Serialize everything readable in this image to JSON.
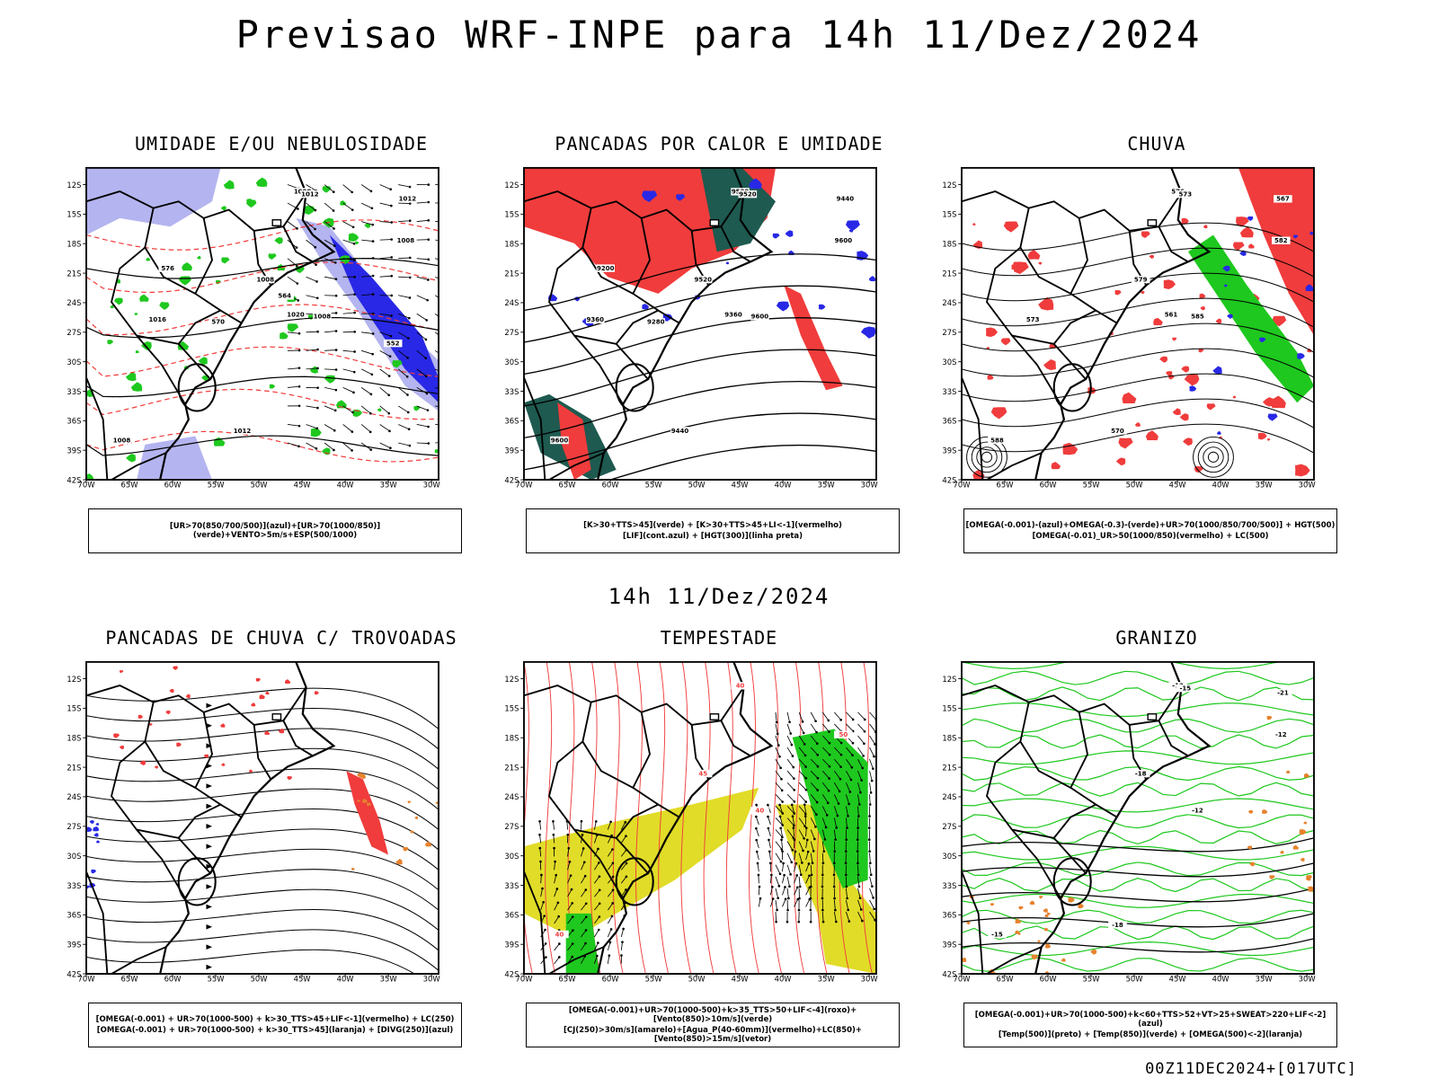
{
  "title": "Previsao WRF-INPE  para 14h 11/Dez/2024",
  "mid_label": "14h 11/Dez/2024",
  "footer": "00Z11DEC2024+[017UTC]",
  "lat_ticks": [
    "12S",
    "15S",
    "18S",
    "21S",
    "24S",
    "27S",
    "30S",
    "33S",
    "36S",
    "39S",
    "42S"
  ],
  "lon_ticks": [
    "70W",
    "65W",
    "60W",
    "55W",
    "50W",
    "45W",
    "40W",
    "35W",
    "30W"
  ],
  "panels": [
    {
      "title": "UMIDADE E/OU NEBULOSIDADE",
      "legend": [
        "[UR>70(850/700/500)](azul)+[UR>70(1000/850)](verde)+VENTO>5m/s+ESP(500/1000)"
      ],
      "fields": [
        "lilac-humidity",
        "blue-humidity",
        "green-humidity",
        "red-dashed-thickness",
        "black-isobars",
        "wind-arrows"
      ],
      "labels": [
        "1008",
        "1008",
        "1008",
        "1008",
        "1008",
        "1012",
        "1012",
        "1012",
        "1016",
        "1020",
        "570",
        "576",
        "552",
        "564"
      ]
    },
    {
      "title": "PANCADAS POR CALOR E UMIDADE",
      "legend": [
        "[K>30+TTS>45](verde) + [K>30+TTS>45+LI<-1](vermelho)",
        "[LIF](cont.azul) + [HGT(300)](linha preta)"
      ],
      "fields": [
        "red-shading",
        "dark-green-shading",
        "blue-contours",
        "black-height-lines"
      ],
      "labels": [
        "9600",
        "9600",
        "9600",
        "9520",
        "9520",
        "9520",
        "9440",
        "9440",
        "9360",
        "9360",
        "9280",
        "9200"
      ]
    },
    {
      "title": "CHUVA",
      "legend": [
        "[OMEGA(-0.001)-(azul)+OMEGA(-0.3)-(verde)+UR>70(1000/850/700/500)] + HGT(500)",
        "[OMEGA(-0.01)_UR>50(1000/850)(vermelho) + LC(500)"
      ],
      "fields": [
        "red-rain",
        "green-rain",
        "blue-rain",
        "black-height-lines"
      ],
      "labels": [
        "582",
        "585",
        "588",
        "579",
        "576",
        "573",
        "570",
        "567",
        "573",
        "561"
      ]
    },
    {
      "title": "PANCADAS DE CHUVA C/ TROVOADAS",
      "legend": [
        "[OMEGA(-0.001) + UR>70(1000-500) + k>30_TTS>45+LIF<-1](vermelho) + LC(250)",
        "[OMEGA(-0.001) + UR>70(1000-500) + k>30_TTS>45](laranja) + [DIVG(250)](azul)"
      ],
      "fields": [
        "black-streamlines",
        "red-dots",
        "orange-dots",
        "blue-dots"
      ],
      "labels": []
    },
    {
      "title": "TEMPESTADE",
      "legend": [
        "[OMEGA(-0.001)+UR>70(1000-500)+k>35_TTS>50+LIF<-4](roxo)+[Vento(850)>10m/s](verde)",
        "[CJ(250)>30m/s](amarelo)+[Agua_P(40-60mm)](vermelho)+LC(850)+[Vento(850)>15m/s](vetor)"
      ],
      "fields": [
        "yellow-jet",
        "red-streamlines",
        "green-wind",
        "black-vectors"
      ],
      "labels": [
        "50",
        "40",
        "40",
        "45",
        "40"
      ]
    },
    {
      "title": "GRANIZO",
      "legend": [
        "[OMEGA(-0.001)+UR>70(1000-500)+k<60+TTS>52+VT>25+SWEAT>220+LIF<-2](azul)",
        "[Temp(500)](preto) + [Temp(850)](verde) + [OMEGA(500)<-2](laranja)"
      ],
      "fields": [
        "green-temp-contours",
        "black-temp-contours",
        "orange-omega"
      ],
      "labels": [
        "-12",
        "-12",
        "-15",
        "-18",
        "-12",
        "-15",
        "-18",
        "-21"
      ]
    }
  ],
  "colors": {
    "red": "#f03c3c",
    "green": "#1ec81e",
    "blue": "#2828e6",
    "lilac": "#b4b4f0",
    "yellow": "#e1dc28",
    "dark_teal": "#1e5a50",
    "orange": "#e6822d"
  }
}
